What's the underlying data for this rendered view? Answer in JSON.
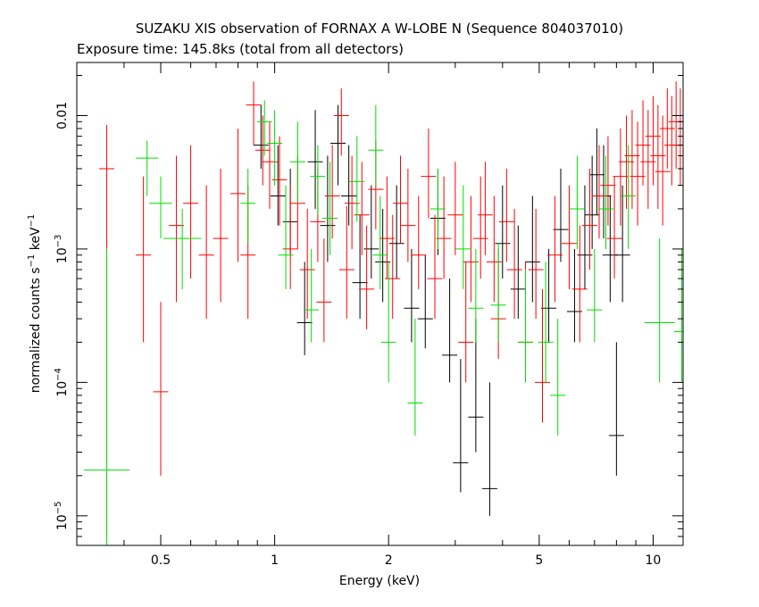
{
  "chart_data": {
    "type": "scatter",
    "title": "SUZAKU XIS observation of FORNAX A W-LOBE N (Sequence 804037010)",
    "subtitle": "Exposure time: 145.8ks (total from all detectors)",
    "xlabel": "Energy (keV)",
    "ylabel": {
      "base": "normalized counts s",
      "exp1": "−1",
      "mid": " keV",
      "exp2": "−1"
    },
    "x_scale": "log",
    "y_scale": "log",
    "xlim": [
      0.3,
      12.0
    ],
    "ylim": [
      6e-06,
      0.025
    ],
    "x_ticks": [
      {
        "value": 0.5,
        "label": "0.5"
      },
      {
        "value": 1,
        "label": "1"
      },
      {
        "value": 2,
        "label": "2"
      },
      {
        "value": 5,
        "label": "5"
      },
      {
        "value": 10,
        "label": "10"
      }
    ],
    "y_ticks": [
      {
        "value": 1e-05,
        "base": "10",
        "exp": "−5"
      },
      {
        "value": 0.0001,
        "base": "10",
        "exp": "−4"
      },
      {
        "value": 0.001,
        "base": "10",
        "exp": "−3"
      },
      {
        "value": 0.01,
        "label": "0.01"
      }
    ],
    "grid": false,
    "series": [
      {
        "color": "#000000",
        "points": [
          [
            0.92,
            0.006,
            0.02,
            0.004,
            0.012
          ],
          [
            1.02,
            0.0025,
            0.02,
            0.0015,
            0.006
          ],
          [
            1.1,
            0.0016,
            0.02,
            0.0009,
            0.004
          ],
          [
            1.2,
            0.00028,
            0.02,
            0.00016,
            0.0008
          ],
          [
            1.28,
            0.0045,
            0.02,
            0.002,
            0.011
          ],
          [
            1.38,
            0.0015,
            0.02,
            0.0008,
            0.005
          ],
          [
            1.47,
            0.0062,
            0.02,
            0.003,
            0.012
          ],
          [
            1.57,
            0.0025,
            0.02,
            0.0015,
            0.006
          ],
          [
            1.68,
            0.00056,
            0.02,
            0.0003,
            0.0018
          ],
          [
            1.8,
            0.001,
            0.02,
            0.0006,
            0.003
          ],
          [
            1.93,
            0.0008,
            0.02,
            0.0004,
            0.002
          ],
          [
            2.1,
            0.0011,
            0.02,
            0.0006,
            0.003
          ],
          [
            2.3,
            0.00036,
            0.02,
            0.0002,
            0.001
          ],
          [
            2.5,
            0.0003,
            0.02,
            0.00018,
            0.0009
          ],
          [
            2.7,
            0.0017,
            0.02,
            0.0009,
            0.004
          ],
          [
            2.9,
            0.00016,
            0.02,
            0.0001,
            0.0006
          ],
          [
            3.1,
            2.5e-05,
            0.02,
            1.5e-05,
            0.00015
          ],
          [
            3.4,
            5.5e-05,
            0.02,
            3e-05,
            0.0003
          ],
          [
            3.7,
            1.6e-05,
            0.02,
            1e-05,
            0.0001
          ],
          [
            4.0,
            0.0011,
            0.02,
            0.0006,
            0.003
          ],
          [
            4.4,
            0.0005,
            0.02,
            0.0003,
            0.0015
          ],
          [
            4.8,
            0.0008,
            0.02,
            0.0004,
            0.0025
          ],
          [
            5.3,
            0.00036,
            0.02,
            0.0002,
            0.001
          ],
          [
            5.7,
            0.0014,
            0.02,
            0.0008,
            0.004
          ],
          [
            6.2,
            0.00034,
            0.02,
            0.0002,
            0.001
          ],
          [
            6.6,
            0.0009,
            0.02,
            0.0005,
            0.003
          ],
          [
            6.9,
            0.0018,
            0.02,
            0.001,
            0.005
          ],
          [
            7.1,
            0.0036,
            0.02,
            0.0018,
            0.008
          ],
          [
            7.4,
            0.0025,
            0.02,
            0.0012,
            0.006
          ],
          [
            7.7,
            0.0009,
            0.02,
            0.0004,
            0.0025
          ],
          [
            8.0,
            4e-05,
            0.02,
            2e-05,
            0.0002
          ],
          [
            8.3,
            0.0009,
            0.02,
            0.0004,
            0.003
          ]
        ]
      },
      {
        "color": "#ff0000",
        "points": [
          [
            0.36,
            0.004,
            0.02,
            0.001,
            0.0085
          ],
          [
            0.45,
            0.0009,
            0.02,
            0.0002,
            0.0035
          ],
          [
            0.5,
            8.5e-05,
            0.02,
            2e-05,
            0.0004
          ],
          [
            0.55,
            0.0015,
            0.02,
            0.0004,
            0.005
          ],
          [
            0.6,
            0.0022,
            0.02,
            0.0006,
            0.006
          ],
          [
            0.66,
            0.0009,
            0.02,
            0.0003,
            0.003
          ],
          [
            0.72,
            0.0012,
            0.02,
            0.0004,
            0.004
          ],
          [
            0.8,
            0.0026,
            0.02,
            0.0008,
            0.008
          ],
          [
            0.85,
            0.0009,
            0.02,
            0.0003,
            0.003
          ],
          [
            0.88,
            0.012,
            0.02,
            0.006,
            0.018
          ],
          [
            0.93,
            0.0055,
            0.02,
            0.003,
            0.01
          ],
          [
            0.97,
            0.0045,
            0.02,
            0.002,
            0.009
          ],
          [
            1.03,
            0.0033,
            0.02,
            0.0015,
            0.007
          ],
          [
            1.1,
            0.001,
            0.02,
            0.0005,
            0.003
          ],
          [
            1.15,
            0.0022,
            0.02,
            0.001,
            0.005
          ],
          [
            1.22,
            0.0007,
            0.02,
            0.0003,
            0.002
          ],
          [
            1.3,
            0.0016,
            0.02,
            0.0008,
            0.004
          ],
          [
            1.35,
            0.0004,
            0.02,
            0.0002,
            0.0012
          ],
          [
            1.42,
            0.0025,
            0.02,
            0.0012,
            0.006
          ],
          [
            1.5,
            0.01,
            0.02,
            0.005,
            0.016
          ],
          [
            1.55,
            0.0007,
            0.02,
            0.0003,
            0.0021
          ],
          [
            1.6,
            0.0022,
            0.02,
            0.001,
            0.005
          ],
          [
            1.7,
            0.0018,
            0.02,
            0.0009,
            0.0045
          ],
          [
            1.75,
            0.0005,
            0.02,
            0.00025,
            0.0015
          ],
          [
            1.85,
            0.0028,
            0.02,
            0.0014,
            0.0065
          ],
          [
            1.98,
            0.0012,
            0.02,
            0.0006,
            0.0035
          ],
          [
            2.05,
            0.0006,
            0.02,
            0.0003,
            0.0018
          ],
          [
            2.15,
            0.0022,
            0.02,
            0.0011,
            0.005
          ],
          [
            2.25,
            0.0015,
            0.02,
            0.0008,
            0.004
          ],
          [
            2.4,
            0.0009,
            0.02,
            0.0005,
            0.0025
          ],
          [
            2.55,
            0.0035,
            0.02,
            0.0017,
            0.008
          ],
          [
            2.65,
            0.0006,
            0.02,
            0.0003,
            0.0018
          ],
          [
            2.8,
            0.0012,
            0.02,
            0.0006,
            0.0035
          ],
          [
            3.0,
            0.0018,
            0.02,
            0.0009,
            0.0045
          ],
          [
            3.2,
            0.0002,
            0.02,
            0.0001,
            0.0008
          ],
          [
            3.3,
            0.0008,
            0.02,
            0.0004,
            0.0025
          ],
          [
            3.5,
            0.0012,
            0.02,
            0.0006,
            0.0035
          ],
          [
            3.6,
            0.0018,
            0.02,
            0.0009,
            0.0045
          ],
          [
            3.8,
            0.0008,
            0.02,
            0.0004,
            0.0025
          ],
          [
            3.9,
            0.0003,
            0.02,
            0.00015,
            0.001
          ],
          [
            4.1,
            0.0016,
            0.02,
            0.0008,
            0.004
          ],
          [
            4.3,
            0.0007,
            0.02,
            0.0003,
            0.002
          ],
          [
            4.6,
            0.0002,
            0.02,
            0.0001,
            0.0008
          ],
          [
            4.9,
            0.0007,
            0.02,
            0.0003,
            0.002
          ],
          [
            5.1,
            0.0001,
            0.02,
            5e-05,
            0.0005
          ],
          [
            5.5,
            0.0009,
            0.02,
            0.0004,
            0.0025
          ],
          [
            6.0,
            0.0011,
            0.02,
            0.0005,
            0.003
          ],
          [
            6.4,
            0.0005,
            0.02,
            0.0002,
            0.0015
          ],
          [
            6.8,
            0.0015,
            0.02,
            0.0007,
            0.004
          ],
          [
            7.2,
            0.0025,
            0.02,
            0.0012,
            0.006
          ],
          [
            7.6,
            0.003,
            0.02,
            0.0015,
            0.007
          ],
          [
            7.9,
            0.0012,
            0.02,
            0.0006,
            0.0035
          ],
          [
            8.2,
            0.0035,
            0.02,
            0.0015,
            0.008
          ],
          [
            8.5,
            0.0045,
            0.02,
            0.002,
            0.01
          ],
          [
            8.8,
            0.005,
            0.02,
            0.002,
            0.011
          ],
          [
            9.1,
            0.0035,
            0.02,
            0.0015,
            0.009
          ],
          [
            9.4,
            0.006,
            0.02,
            0.003,
            0.013
          ],
          [
            9.7,
            0.0045,
            0.02,
            0.002,
            0.011
          ],
          [
            10.0,
            0.007,
            0.02,
            0.003,
            0.014
          ],
          [
            10.3,
            0.005,
            0.02,
            0.002,
            0.012
          ],
          [
            10.6,
            0.0038,
            0.02,
            0.0015,
            0.01
          ],
          [
            10.9,
            0.008,
            0.02,
            0.004,
            0.016
          ],
          [
            11.2,
            0.006,
            0.02,
            0.003,
            0.014
          ],
          [
            11.5,
            0.009,
            0.02,
            0.004,
            0.018
          ],
          [
            11.8,
            0.006,
            0.02,
            0.003,
            0.016
          ]
        ]
      },
      {
        "color": "#00dd00",
        "points": [
          [
            0.36,
            2.2e-05,
            0.06,
            6e-06,
            0.001
          ],
          [
            0.46,
            0.0048,
            0.03,
            0.0025,
            0.0065
          ],
          [
            0.5,
            0.0022,
            0.03,
            0.0012,
            0.0035
          ],
          [
            0.57,
            0.0012,
            0.05,
            0.0005,
            0.002
          ],
          [
            0.85,
            0.0022,
            0.02,
            0.0011,
            0.004
          ],
          [
            0.94,
            0.009,
            0.02,
            0.005,
            0.013
          ],
          [
            1.0,
            0.0062,
            0.02,
            0.003,
            0.011
          ],
          [
            1.07,
            0.0009,
            0.02,
            0.0005,
            0.003
          ],
          [
            1.15,
            0.0045,
            0.02,
            0.0022,
            0.009
          ],
          [
            1.25,
            0.00035,
            0.02,
            0.0002,
            0.001
          ],
          [
            1.3,
            0.0035,
            0.02,
            0.0018,
            0.006
          ],
          [
            1.4,
            0.0017,
            0.02,
            0.0009,
            0.0045
          ],
          [
            1.65,
            0.0032,
            0.02,
            0.0016,
            0.007
          ],
          [
            1.85,
            0.0055,
            0.02,
            0.003,
            0.012
          ],
          [
            1.9,
            0.0009,
            0.02,
            0.0005,
            0.0025
          ],
          [
            2.0,
            0.0002,
            0.02,
            0.0001,
            0.0008
          ],
          [
            2.35,
            7e-05,
            0.02,
            4e-05,
            0.0003
          ],
          [
            2.7,
            0.002,
            0.02,
            0.001,
            0.004
          ],
          [
            3.15,
            0.001,
            0.02,
            0.0005,
            0.003
          ],
          [
            3.4,
            0.00036,
            0.02,
            0.0002,
            0.001
          ],
          [
            3.9,
            0.00038,
            0.02,
            0.0002,
            0.0011
          ],
          [
            4.6,
            0.0002,
            0.02,
            0.0001,
            0.0007
          ],
          [
            5.2,
            0.0002,
            0.02,
            0.0001,
            0.0008
          ],
          [
            5.6,
            8e-05,
            0.02,
            4e-05,
            0.0003
          ],
          [
            6.3,
            0.002,
            0.02,
            0.001,
            0.005
          ],
          [
            7.0,
            0.00035,
            0.02,
            0.0002,
            0.001
          ],
          [
            7.5,
            0.002,
            0.02,
            0.001,
            0.005
          ],
          [
            8.6,
            0.0025,
            0.02,
            0.001,
            0.006
          ],
          [
            10.4,
            0.00028,
            0.04,
            0.0001,
            0.0012
          ],
          [
            11.9,
            0.00024,
            0.02,
            0.0001,
            0.001
          ]
        ]
      }
    ]
  }
}
